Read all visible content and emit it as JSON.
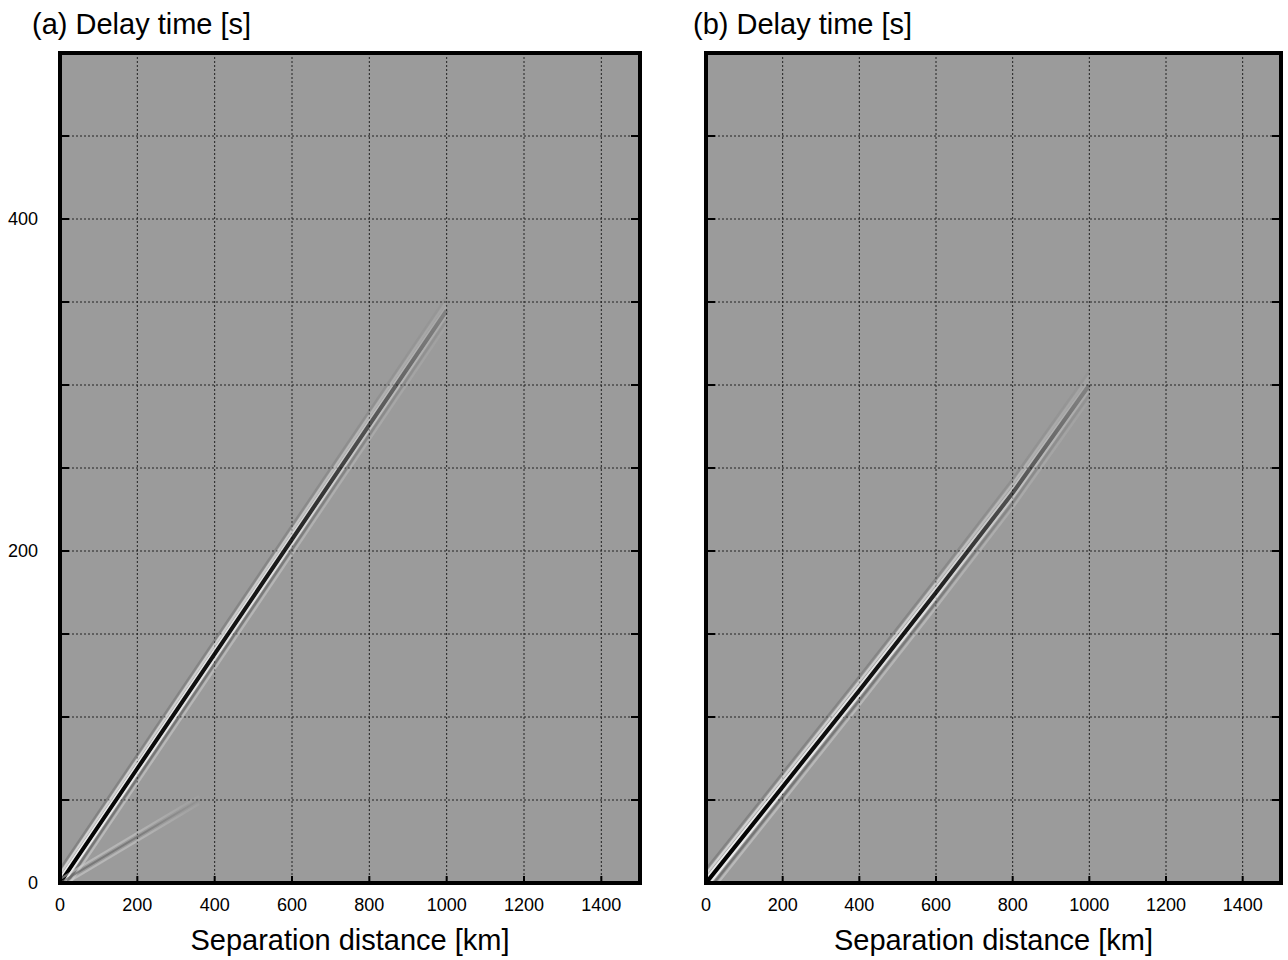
{
  "chart_data": [
    {
      "type": "line",
      "title": "(a) Delay time [s]",
      "x_label": "Separation distance [km]",
      "xlim": [
        0,
        1500
      ],
      "ylim": [
        0,
        500
      ],
      "xticks": [
        0,
        200,
        400,
        600,
        800,
        1000,
        1200,
        1400
      ],
      "yticks": [
        0,
        {
          "value": 50,
          "label": null
        },
        {
          "value": 100,
          "label": null
        },
        {
          "value": 150,
          "label": null
        },
        200,
        {
          "value": 250,
          "label": null
        },
        {
          "value": 300,
          "label": null
        },
        {
          "value": 350,
          "label": null
        },
        400,
        {
          "value": 450,
          "label": null
        }
      ],
      "grid": true,
      "tick_labels": true,
      "series": [
        {
          "color": "#000000",
          "line_style": "solid",
          "x": [
            0,
            200,
            400,
            600,
            800,
            1000
          ],
          "values": [
            0,
            69,
            138,
            207,
            276,
            345
          ]
        },
        {
          "color": "#666666",
          "line_style": "solid",
          "x": [
            0,
            360
          ],
          "values": [
            0,
            50
          ]
        }
      ]
    },
    {
      "type": "line",
      "title": "(b) Delay time [s]",
      "x_label": "Separation distance [km]",
      "xlim": [
        0,
        1500
      ],
      "ylim": [
        0,
        500
      ],
      "xticks": [
        0,
        200,
        400,
        600,
        800,
        1000,
        1200,
        1400
      ],
      "yticks": [
        0,
        {
          "value": 50,
          "label": null
        },
        {
          "value": 100,
          "label": null
        },
        {
          "value": 150,
          "label": null
        },
        200,
        {
          "value": 250,
          "label": null
        },
        {
          "value": 300,
          "label": null
        },
        {
          "value": 350,
          "label": null
        },
        400,
        {
          "value": 450,
          "label": null
        }
      ],
      "grid": true,
      "tick_labels": "x",
      "series": [
        {
          "color": "#000000",
          "line_style": "solid",
          "x": [
            0,
            200,
            400,
            600,
            800,
            1000
          ],
          "values": [
            0,
            58,
            116,
            175,
            235,
            300
          ]
        }
      ]
    }
  ]
}
